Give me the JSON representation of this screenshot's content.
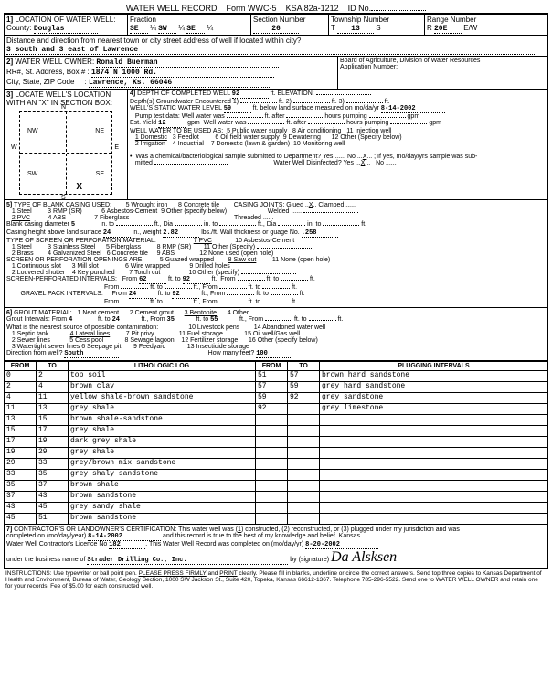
{
  "header": {
    "title": "WATER WELL RECORD",
    "form": "Form WWC-5",
    "ksa": "KSA 82a-1212",
    "id": "ID No."
  },
  "s1": {
    "county_label": "County:",
    "county": "Douglas",
    "fraction": {
      "a": "SE",
      "b": "SW",
      "c": "SE"
    },
    "section_num": "26",
    "township": "13",
    "township_dir": "S",
    "range": "20E",
    "range_dir": "E/W",
    "dist_label": "Distance and direction from nearest town or city street address of well if located within city?",
    "dist": "3 south and 3 east of Lawrence"
  },
  "s2": {
    "owner": "Ronald Buerman",
    "addr": "1874 N 1000 Rd.",
    "csz": "Lawrence, Ks.  66046"
  },
  "s4": {
    "depth": "92",
    "static": "59",
    "static_date": "8-14-2002",
    "yield": "12"
  },
  "s5": {
    "casing_dia": "5",
    "casing_height": "24",
    "weight": "2.82",
    "wall": ".258",
    "perf_from_a": "62",
    "perf_to_a": "92",
    "gravel_from_a": "24",
    "gravel_to_a": "92"
  },
  "s6": {
    "gi_from1": "4",
    "gi_to1": "24",
    "gi_from2": "35",
    "gi_to2": "55",
    "dir": "South",
    "feet": "100"
  },
  "log": {
    "left": [
      {
        "f": "0",
        "t": "2",
        "d": "top soil"
      },
      {
        "f": "2",
        "t": "4",
        "d": "brown clay"
      },
      {
        "f": "4",
        "t": "11",
        "d": "yellow shale-brown sandstone"
      },
      {
        "f": "11",
        "t": "13",
        "d": "grey shale"
      },
      {
        "f": "13",
        "t": "15",
        "d": "brown shale-sandstone"
      },
      {
        "f": "15",
        "t": "17",
        "d": "grey shale"
      },
      {
        "f": "17",
        "t": "19",
        "d": "dark grey shale"
      },
      {
        "f": "19",
        "t": "29",
        "d": "grey shale"
      },
      {
        "f": "29",
        "t": "33",
        "d": "grey/brown mix sandstone"
      },
      {
        "f": "33",
        "t": "35",
        "d": "grey shaly sandstone"
      },
      {
        "f": "35",
        "t": "37",
        "d": "brown shale"
      },
      {
        "f": "37",
        "t": "43",
        "d": "brown sandstone"
      },
      {
        "f": "43",
        "t": "45",
        "d": "grey sandy shale"
      },
      {
        "f": "45",
        "t": "51",
        "d": "brown sandstone"
      }
    ],
    "right": [
      {
        "f": "51",
        "t": "57",
        "d": "brown hard sandstone"
      },
      {
        "f": "57",
        "t": "59",
        "d": "grey hard sandstone"
      },
      {
        "f": "59",
        "t": "92",
        "d": "grey sandstone"
      },
      {
        "f": "92",
        "t": "",
        "d": "grey limestone"
      },
      {
        "f": "",
        "t": "",
        "d": ""
      },
      {
        "f": "",
        "t": "",
        "d": ""
      },
      {
        "f": "",
        "t": "",
        "d": ""
      },
      {
        "f": "",
        "t": "",
        "d": ""
      },
      {
        "f": "",
        "t": "",
        "d": ""
      },
      {
        "f": "",
        "t": "",
        "d": ""
      },
      {
        "f": "",
        "t": "",
        "d": ""
      },
      {
        "f": "",
        "t": "",
        "d": ""
      },
      {
        "f": "",
        "t": "",
        "d": ""
      },
      {
        "f": "",
        "t": "",
        "d": ""
      }
    ]
  },
  "s7": {
    "comp_date": "8-14-2002",
    "license": "182",
    "date2": "8-20-2002",
    "business": "Strader Drilling Co., Inc.",
    "signature": "Da Alsksen"
  }
}
